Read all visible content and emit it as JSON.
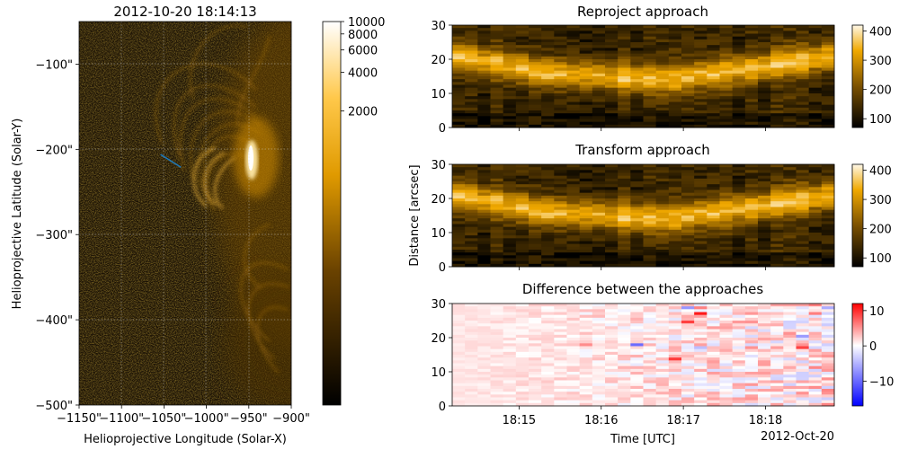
{
  "colors": {
    "solar_dark": "#000000",
    "solar_bright": "#ffc020",
    "slit": "#1f77b4",
    "diff_low": "#0000ff",
    "diff_mid": "#ffffff",
    "diff_high": "#ff0000"
  },
  "chart_data": [
    {
      "type": "heatmap",
      "title": "2012-10-20 18:14:13",
      "xlabel": "Helioprojective Longitude (Solar-X)",
      "ylabel": "Helioprojective Latitude (Solar-Y)",
      "xlim": [
        -1150,
        -900
      ],
      "ylim": [
        -500,
        -50
      ],
      "x_ticks": [
        -1150,
        -1100,
        -1050,
        -1000,
        -950,
        -900
      ],
      "x_tick_labels": [
        "−1150\"",
        "−1100\"",
        "−1050\"",
        "−1000\"",
        "−950\"",
        "−900\""
      ],
      "y_ticks": [
        -100,
        -200,
        -300,
        -400,
        -500
      ],
      "y_tick_labels": [
        "−100\"",
        "−200\"",
        "−300\"",
        "−400\"",
        "−500\""
      ],
      "grid": true,
      "colormap": "sdoaia171",
      "colorbar": {
        "scale": "log",
        "range": [
          0,
          10000
        ],
        "ticks": [
          2000,
          4000,
          6000,
          8000,
          10000
        ],
        "tick_labels": [
          "2000",
          "4000",
          "6000",
          "8000",
          "10000"
        ]
      },
      "slit": {
        "x": [
          -1054,
          -1030
        ],
        "y": [
          -206,
          -221
        ]
      }
    },
    {
      "type": "heatmap",
      "title": "Reproject approach",
      "xlabel": "",
      "ylabel": "",
      "ylim": [
        0,
        30
      ],
      "y_ticks": [
        0,
        10,
        20,
        30
      ],
      "y_tick_labels": [
        "0",
        "10",
        "20",
        "30"
      ],
      "x_ticks": [
        "18:15",
        "18:16",
        "18:17",
        "18:18"
      ],
      "colorbar": {
        "range": [
          70,
          420
        ],
        "ticks": [
          100,
          200,
          300,
          400
        ],
        "tick_labels": [
          "100",
          "200",
          "300",
          "400"
        ]
      },
      "ridge": {
        "x_fraction": [
          0.0,
          0.25,
          0.55,
          0.7,
          1.0
        ],
        "distance": [
          21,
          16,
          14,
          16,
          21
        ]
      }
    },
    {
      "type": "heatmap",
      "title": "Transform approach",
      "xlabel": "",
      "ylabel": "Distance [arcsec]",
      "ylim": [
        0,
        30
      ],
      "y_ticks": [
        0,
        10,
        20,
        30
      ],
      "y_tick_labels": [
        "0",
        "10",
        "20",
        "30"
      ],
      "x_ticks": [
        "18:15",
        "18:16",
        "18:17",
        "18:18"
      ],
      "colorbar": {
        "range": [
          70,
          420
        ],
        "ticks": [
          100,
          200,
          300,
          400
        ],
        "tick_labels": [
          "100",
          "200",
          "300",
          "400"
        ]
      }
    },
    {
      "type": "heatmap",
      "title": "Difference between the approaches",
      "xlabel": "Time [UTC]",
      "xlabel_offset": "2012-Oct-20",
      "ylabel": "",
      "ylim": [
        0,
        30
      ],
      "y_ticks": [
        0,
        10,
        20,
        30
      ],
      "y_tick_labels": [
        "0",
        "10",
        "20",
        "30"
      ],
      "x_ticks": [
        "18:15",
        "18:16",
        "18:17",
        "18:18"
      ],
      "x_tick_labels": [
        "18:15",
        "18:16",
        "18:17",
        "18:18"
      ],
      "colorbar": {
        "range": [
          -17,
          12
        ],
        "ticks": [
          10,
          0,
          -10
        ],
        "tick_labels": [
          "10",
          "0",
          "−10"
        ]
      }
    }
  ]
}
